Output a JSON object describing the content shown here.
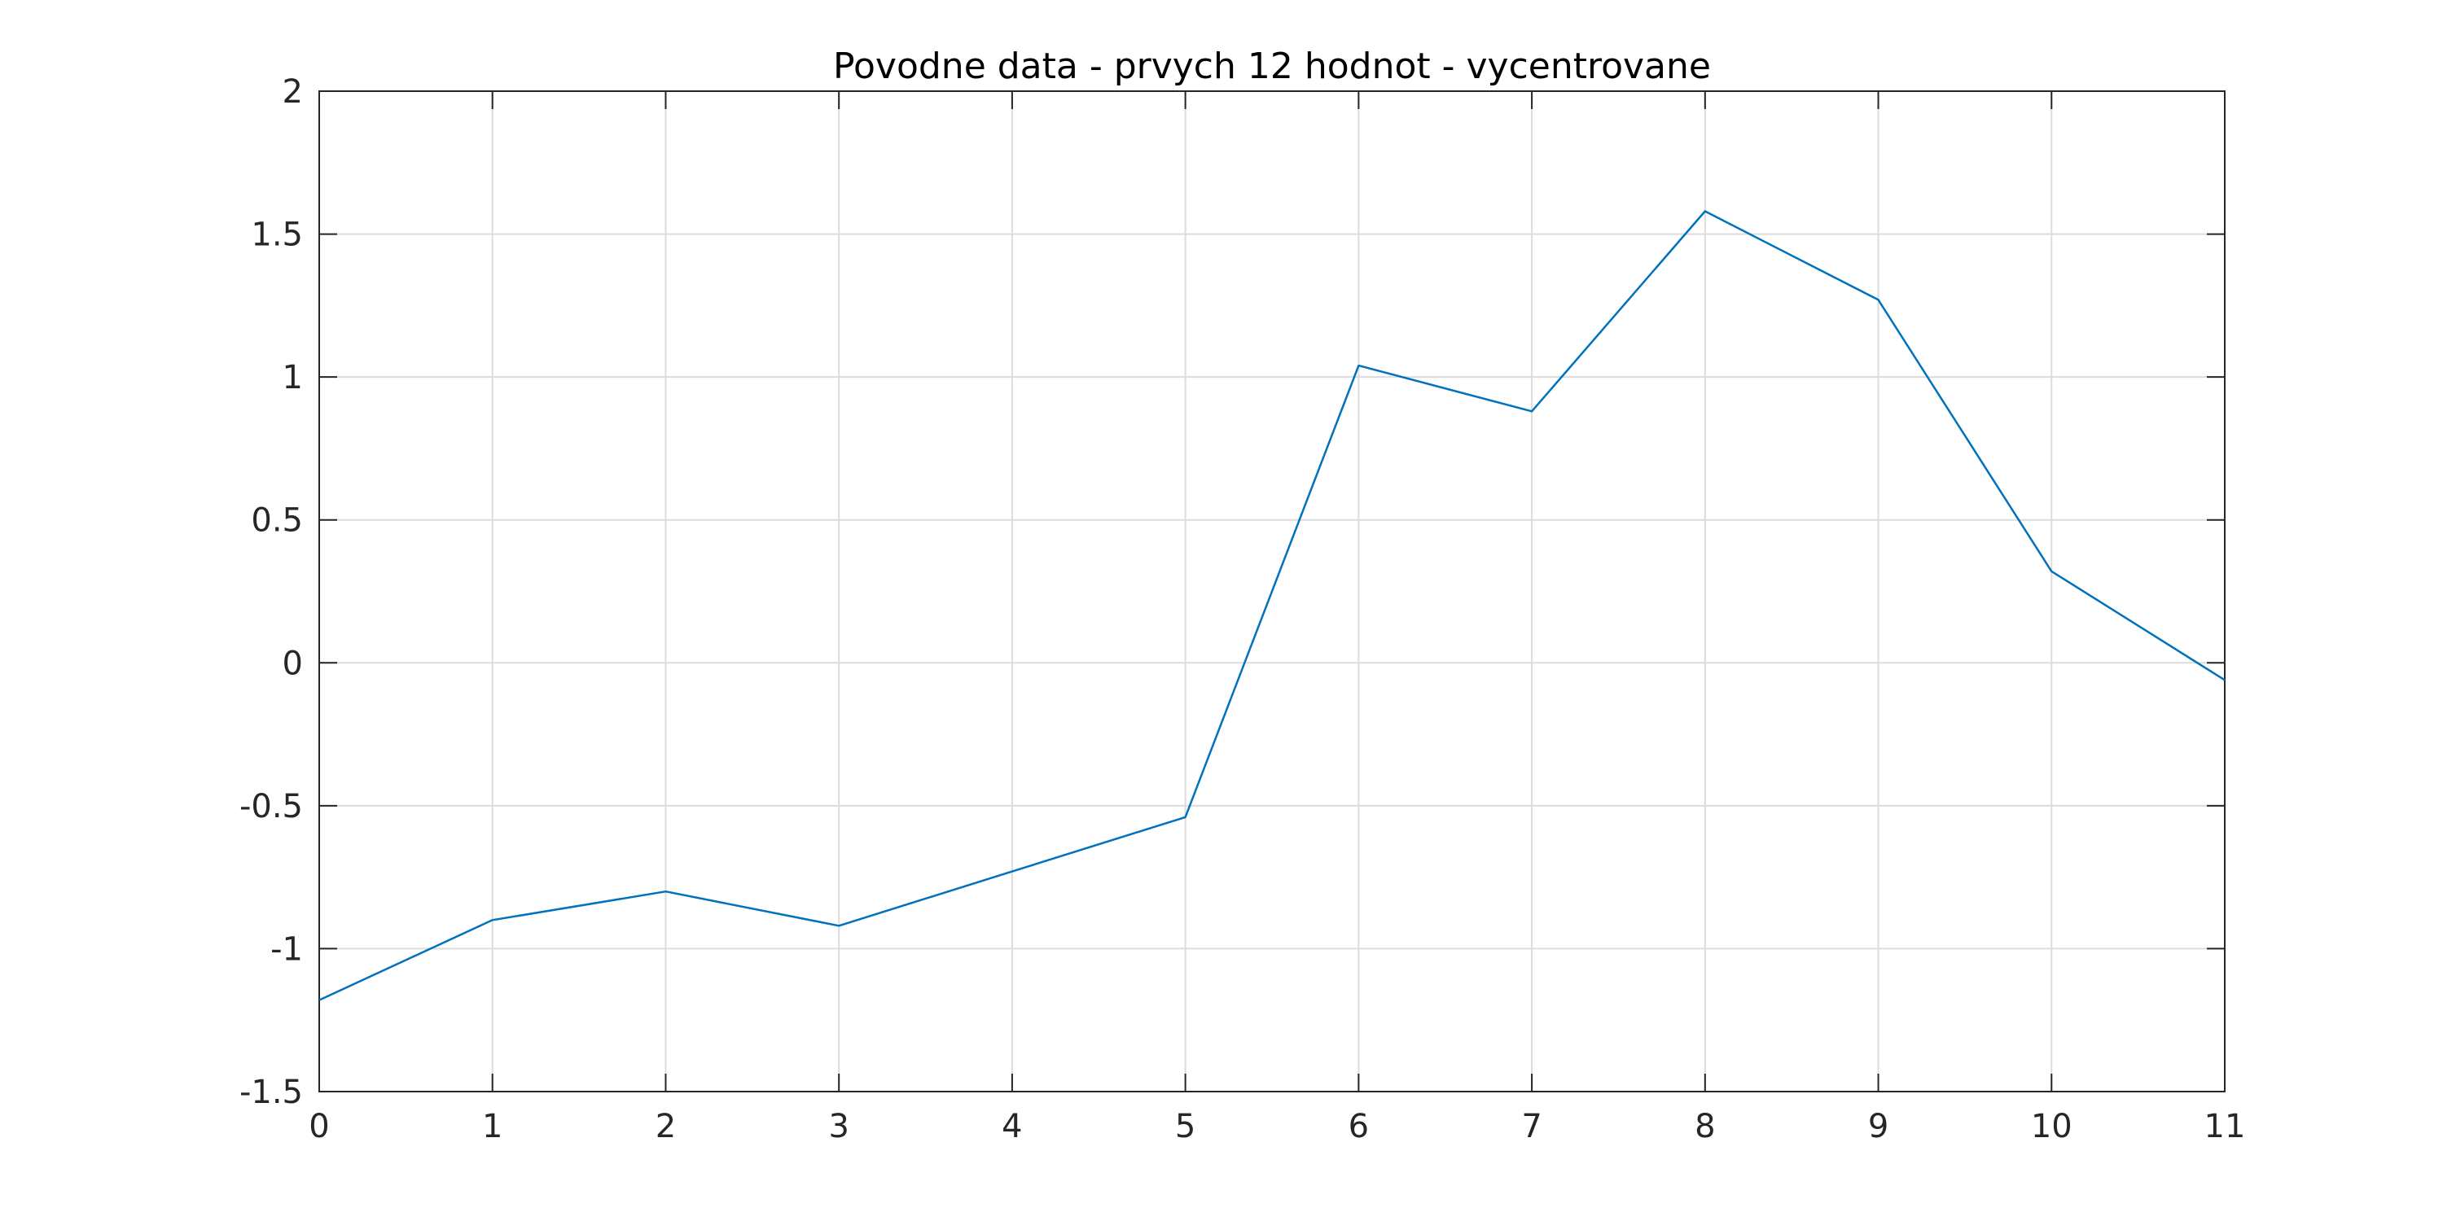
{
  "chart_data": {
    "type": "line",
    "title": "Povodne data - prvych 12 hodnot - vycentrovane",
    "xlabel": "",
    "ylabel": "",
    "xlim": [
      0,
      11
    ],
    "ylim": [
      -1.5,
      2
    ],
    "xticks": [
      0,
      1,
      2,
      3,
      4,
      5,
      6,
      7,
      8,
      9,
      10,
      11
    ],
    "xtick_labels": [
      "0",
      "1",
      "2",
      "3",
      "4",
      "5",
      "6",
      "7",
      "8",
      "9",
      "10",
      "11"
    ],
    "yticks": [
      -1.5,
      -1,
      -0.5,
      0,
      0.5,
      1,
      1.5,
      2
    ],
    "ytick_labels": [
      "-1.5",
      "-1",
      "-0.5",
      "0",
      "0.5",
      "1",
      "1.5",
      "2"
    ],
    "grid": true,
    "box": true,
    "series": [
      {
        "x": [
          0,
          1,
          2,
          3,
          4,
          5,
          6,
          7,
          8,
          9,
          10,
          11
        ],
        "y": [
          -1.18,
          -0.9,
          -0.8,
          -0.92,
          -0.73,
          -0.54,
          1.04,
          0.88,
          1.58,
          1.27,
          0.32,
          -0.06
        ],
        "color": "#0072BD"
      }
    ],
    "colors": {
      "line": "#0072BD",
      "grid": "#dcdcdc",
      "axis": "#262626"
    }
  }
}
